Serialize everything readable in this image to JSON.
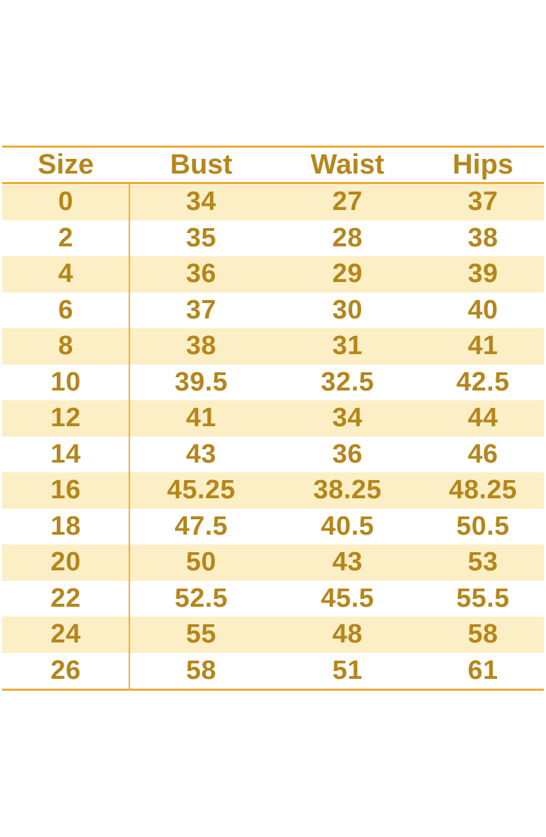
{
  "colors": {
    "text_gold": "#b5861a",
    "line_gold": "#eeaa38",
    "row_stripe_cream": "#fcefc6",
    "background": "#ffffff"
  },
  "table": {
    "headers": [
      "Size",
      "Bust",
      "Waist",
      "Hips"
    ],
    "rows": [
      [
        "0",
        "34",
        "27",
        "37"
      ],
      [
        "2",
        "35",
        "28",
        "38"
      ],
      [
        "4",
        "36",
        "29",
        "39"
      ],
      [
        "6",
        "37",
        "30",
        "40"
      ],
      [
        "8",
        "38",
        "31",
        "41"
      ],
      [
        "10",
        "39.5",
        "32.5",
        "42.5"
      ],
      [
        "12",
        "41",
        "34",
        "44"
      ],
      [
        "14",
        "43",
        "36",
        "46"
      ],
      [
        "16",
        "45.25",
        "38.25",
        "48.25"
      ],
      [
        "18",
        "47.5",
        "40.5",
        "50.5"
      ],
      [
        "20",
        "50",
        "43",
        "53"
      ],
      [
        "22",
        "52.5",
        "45.5",
        "55.5"
      ],
      [
        "24",
        "55",
        "48",
        "58"
      ],
      [
        "26",
        "58",
        "51",
        "61"
      ]
    ]
  },
  "chart_data": {
    "type": "table",
    "columns": [
      "Size",
      "Bust",
      "Waist",
      "Hips"
    ],
    "rows": [
      [
        0,
        34,
        27,
        37
      ],
      [
        2,
        35,
        28,
        38
      ],
      [
        4,
        36,
        29,
        39
      ],
      [
        6,
        37,
        30,
        40
      ],
      [
        8,
        38,
        31,
        41
      ],
      [
        10,
        39.5,
        32.5,
        42.5
      ],
      [
        12,
        41,
        34,
        44
      ],
      [
        14,
        43,
        36,
        46
      ],
      [
        16,
        45.25,
        38.25,
        48.25
      ],
      [
        18,
        47.5,
        40.5,
        50.5
      ],
      [
        20,
        50,
        43,
        53
      ],
      [
        22,
        52.5,
        45.5,
        55.5
      ],
      [
        24,
        55,
        48,
        58
      ],
      [
        26,
        58,
        51,
        61
      ]
    ],
    "layout": {
      "striped_rows": true,
      "first_data_row_shaded": true,
      "vertical_divider_after_column": "Size"
    }
  }
}
